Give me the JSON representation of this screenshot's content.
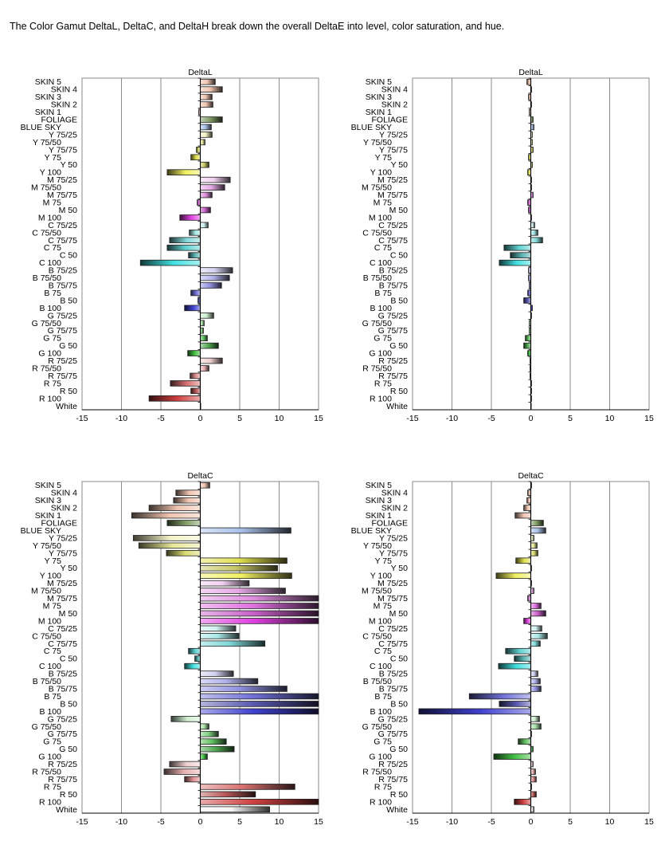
{
  "intro_text": "The Color Gamut DeltaL, DeltaC, and DeltaH break down the overall DeltaE into level, color saturation, and hue.",
  "chart_data": [
    {
      "type": "bar",
      "title": "DeltaL",
      "orientation": "horizontal",
      "xlim": [
        -15,
        15
      ],
      "xticks": [
        -15,
        -10,
        -5,
        0,
        5,
        10,
        15
      ],
      "grid": true,
      "categories": [
        "SKIN 5",
        "SKIN 4",
        "SKIN 3",
        "SKIN 2",
        "SKIN 1",
        "FOLIAGE",
        "BLUE SKY",
        "Y 75/25",
        "Y 75/50",
        "Y 75/75",
        "Y 75",
        "Y 50",
        "Y 100",
        "M 75/25",
        "M 75/50",
        "M 75/75",
        "M 75",
        "M 50",
        "M 100",
        "C 75/25",
        "C 75/50",
        "C 75/75",
        "C 75",
        "C 50",
        "C 100",
        "B 75/25",
        "B 75/50",
        "B 75/75",
        "B 75",
        "B 50",
        "B 100",
        "G 75/25",
        "G 75/50",
        "G 75/75",
        "G 75",
        "G 50",
        "G 100",
        "R 75/25",
        "R 75/50",
        "R 75/75",
        "R 75",
        "R 50",
        "R 100",
        "White"
      ],
      "values": [
        1.9,
        2.8,
        1.5,
        1.6,
        -0.2,
        2.8,
        1.4,
        1.5,
        0.6,
        -0.5,
        -1.2,
        1.1,
        -4.2,
        3.8,
        3.1,
        1.5,
        -0.4,
        1.3,
        -2.6,
        1.0,
        -1.4,
        -3.9,
        -4.2,
        -1.5,
        -7.6,
        4.1,
        3.7,
        2.7,
        -1.2,
        -0.3,
        -2.0,
        1.7,
        0.5,
        0.4,
        0.9,
        2.3,
        -1.6,
        2.8,
        1.1,
        -1.3,
        -3.8,
        -1.2,
        -6.5,
        0
      ]
    },
    {
      "type": "bar",
      "title": "DeltaL",
      "orientation": "horizontal",
      "xlim": [
        -15,
        15
      ],
      "xticks": [
        -15,
        -10,
        -5,
        0,
        5,
        10,
        15
      ],
      "grid": true,
      "categories": [
        "SKIN 5",
        "SKIN 4",
        "SKIN 3",
        "SKIN 2",
        "SKIN 1",
        "FOLIAGE",
        "BLUE SKY",
        "Y 75/25",
        "Y 75/50",
        "Y 75/75",
        "Y 75",
        "Y 50",
        "Y 100",
        "M 75/25",
        "M 75/50",
        "M 75/75",
        "M 75",
        "M 50",
        "M 100",
        "C 75/25",
        "C 75/50",
        "C 75/75",
        "C 75",
        "C 50",
        "C 100",
        "B 75/25",
        "B 75/50",
        "B 75/75",
        "B 75",
        "B 50",
        "B 100",
        "G 75/25",
        "G 75/50",
        "G 75/75",
        "G 75",
        "G 50",
        "G 100",
        "R 75/25",
        "R 75/50",
        "R 75/75",
        "R 75",
        "R 50",
        "R 100",
        "White"
      ],
      "values": [
        -0.5,
        0.1,
        -0.3,
        0.1,
        -0.2,
        0.3,
        0.4,
        0.2,
        0.2,
        0.3,
        -0.3,
        0.2,
        -0.4,
        0.1,
        0.1,
        0.3,
        -0.4,
        -0.3,
        0.1,
        0.5,
        0.9,
        1.5,
        -3.4,
        -2.6,
        -4.0,
        -0.3,
        -0.3,
        -0.2,
        -0.4,
        -0.9,
        0.2,
        0.1,
        -0.2,
        -0.2,
        -0.7,
        -0.9,
        -0.4,
        -0.1,
        -0.1,
        -0.1,
        0.1,
        0.1,
        0.1,
        0
      ]
    },
    {
      "type": "bar",
      "title": "DeltaC",
      "orientation": "horizontal",
      "xlim": [
        -15,
        15
      ],
      "xticks": [
        -15,
        -10,
        -5,
        0,
        5,
        10,
        15
      ],
      "grid": true,
      "categories": [
        "SKIN 5",
        "SKIN 4",
        "SKIN 3",
        "SKIN 2",
        "SKIN 1",
        "FOLIAGE",
        "BLUE SKY",
        "Y 75/25",
        "Y 75/50",
        "Y 75/75",
        "Y 75",
        "Y 50",
        "Y 100",
        "M 75/25",
        "M 75/50",
        "M 75/75",
        "M 75",
        "M 50",
        "M 100",
        "C 75/25",
        "C 75/50",
        "C 75/75",
        "C 75",
        "C 50",
        "C 100",
        "B 75/25",
        "B 75/50",
        "B 75/75",
        "B 75",
        "B 50",
        "B 100",
        "G 75/25",
        "G 75/50",
        "G 75/75",
        "G 75",
        "G 50",
        "G 100",
        "R 75/25",
        "R 75/50",
        "R 75/75",
        "R 75",
        "R 50",
        "R 100",
        "White"
      ],
      "values": [
        1.2,
        -3.1,
        -3.4,
        -6.5,
        -8.7,
        -4.2,
        11.5,
        -8.5,
        -7.8,
        -4.3,
        11.0,
        9.8,
        11.6,
        6.2,
        10.8,
        15,
        15,
        15,
        15,
        4.5,
        4.9,
        8.2,
        -1.5,
        -0.7,
        -2.0,
        4.2,
        7.3,
        11.0,
        15,
        15,
        15,
        -3.7,
        1.1,
        2.3,
        3.3,
        4.3,
        0.9,
        -3.9,
        -4.6,
        -2.0,
        12.0,
        7.0,
        15,
        8.8
      ]
    },
    {
      "type": "bar",
      "title": "DeltaC",
      "orientation": "horizontal",
      "xlim": [
        -15,
        15
      ],
      "xticks": [
        -15,
        -10,
        -5,
        0,
        5,
        10,
        15
      ],
      "grid": true,
      "categories": [
        "SKIN 5",
        "SKIN 4",
        "SKIN 3",
        "SKIN 2",
        "SKIN 1",
        "FOLIAGE",
        "BLUE SKY",
        "Y 75/25",
        "Y 75/50",
        "Y 75/75",
        "Y 75",
        "Y 50",
        "Y 100",
        "M 75/25",
        "M 75/50",
        "M 75/75",
        "M 75",
        "M 50",
        "M 100",
        "C 75/25",
        "C 75/50",
        "C 75/75",
        "C 75",
        "C 50",
        "C 100",
        "B 75/25",
        "B 75/50",
        "B 75/75",
        "B 75",
        "B 50",
        "B 100",
        "G 75/25",
        "G 75/50",
        "G 75/75",
        "G 75",
        "G 50",
        "G 100",
        "R 75/25",
        "R 75/50",
        "R 75/75",
        "R 75",
        "R 50",
        "R 100",
        "White"
      ],
      "values": [
        0.1,
        -0.4,
        -0.5,
        -0.9,
        -2.0,
        1.6,
        1.9,
        0.4,
        0.8,
        0.9,
        -1.9,
        0.1,
        -4.4,
        0.1,
        0.4,
        -0.4,
        1.3,
        1.9,
        -0.9,
        1.4,
        2.1,
        1.2,
        -3.2,
        -2.1,
        -4.1,
        0.9,
        1.2,
        1.3,
        -7.8,
        -4.0,
        -14.2,
        1.1,
        1.3,
        0.1,
        -1.6,
        0.3,
        -4.7,
        0.3,
        0.6,
        0.7,
        0.1,
        0.7,
        -2.1,
        0.4
      ]
    }
  ]
}
